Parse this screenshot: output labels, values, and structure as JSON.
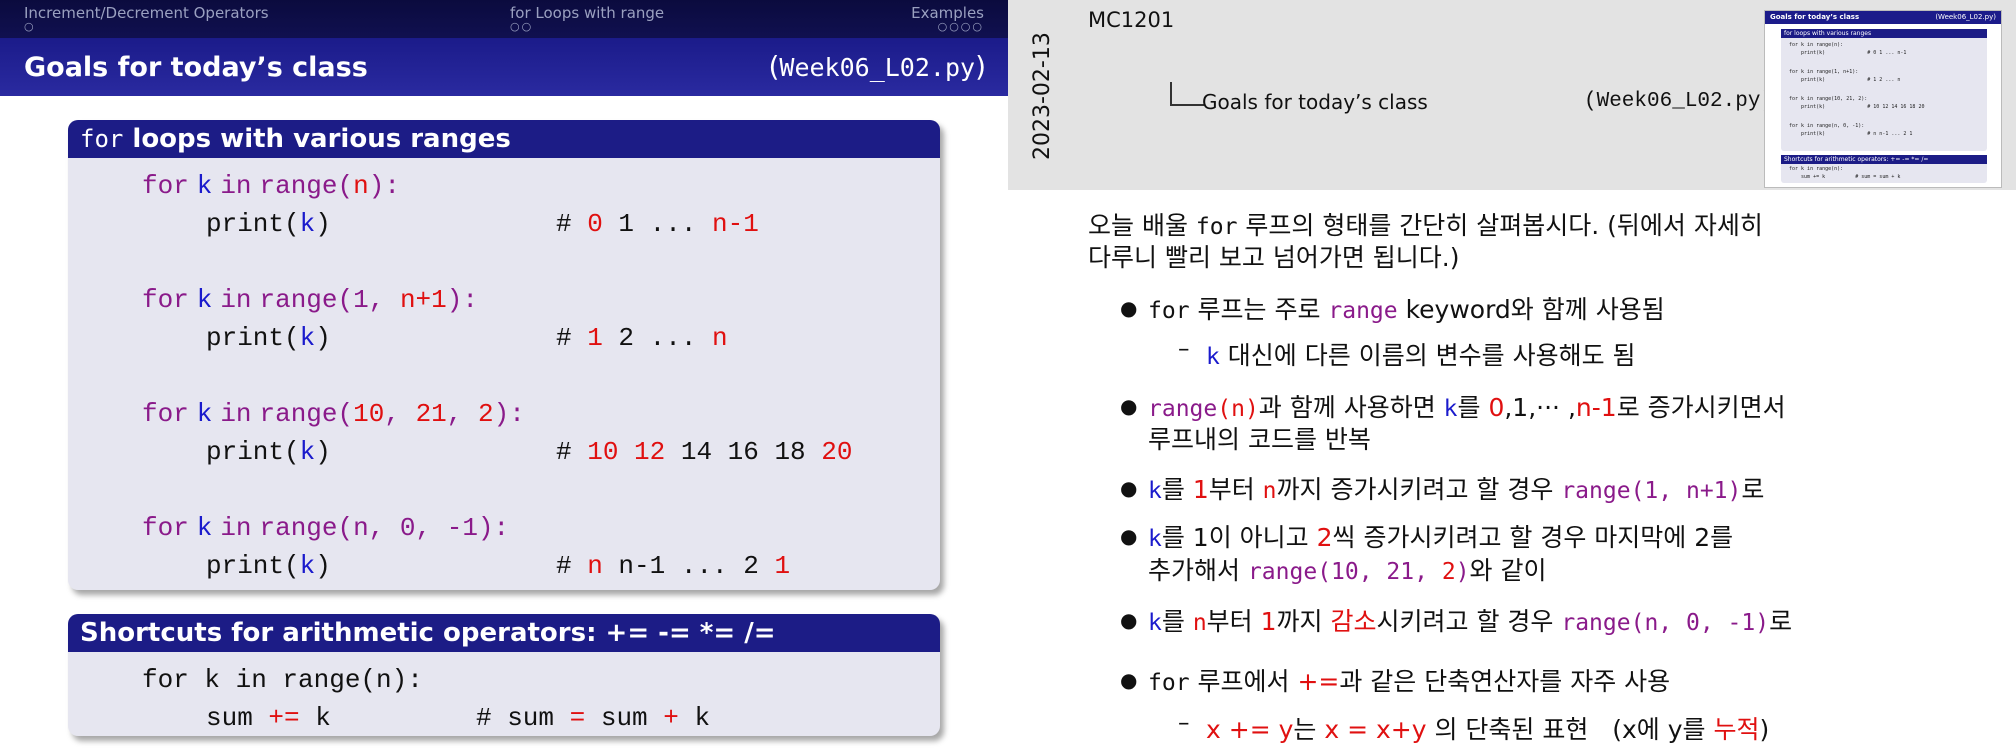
{
  "slide": {
    "nav": {
      "sections": [
        "Increment/Decrement Operators",
        "for Loops with range",
        "Examples"
      ],
      "dots": [
        "○",
        "○○",
        "○○○○"
      ]
    },
    "title": "Goals for today’s class",
    "file_paren_open": "(",
    "file": "Week06_L02.py",
    "file_paren_close": ")",
    "block1": {
      "head_mono": "for",
      "head_text": " loops with various ranges",
      "lines": [
        {
          "code": "for k in range(n):",
          "comment": ""
        },
        {
          "code": "print(k)",
          "comment": "# 0 1 ... n-1"
        },
        {
          "code": "for k in range(1, n+1):",
          "comment": ""
        },
        {
          "code": "print(k)",
          "comment": "# 1 2 ... n"
        },
        {
          "code": "for k in range(10, 21, 2):",
          "comment": ""
        },
        {
          "code": "print(k)",
          "comment": "# 10 12 14 16 18 20"
        },
        {
          "code": "for k in range(n, 0, -1):",
          "comment": ""
        },
        {
          "code": "print(k)",
          "comment": "# n n-1 ... 2 1"
        }
      ]
    },
    "block2": {
      "head_text": "Shortcuts for arithmetic operators: ",
      "head_ops": "+= -= *= /=",
      "line1": "for k in range(n):",
      "line2_code": "sum += k",
      "line2_comment": "# sum = sum + k"
    }
  },
  "notes": {
    "date": "2023-02-13",
    "course": "MC1201",
    "outline_title": "Goals for today’s class",
    "outline_file": "(Week06_L02.py)",
    "thumb": {
      "title": "Goals for today’s class",
      "file": "(Week06_L02.py)",
      "block1_head": "for loops with various ranges",
      "block2_head": "Shortcuts for arithmetic operators: += -= *= /=",
      "lines": [
        "for k in range(n):",
        "    print(k)              # 0 1 ... n-1",
        "for k in range(1, n+1):",
        "    print(k)              # 1 2 ... n",
        "for k in range(10, 21, 2):",
        "    print(k)              # 10 12 14 16 18 20",
        "for k in range(n, 0, -1):",
        "    print(k)              # n n-1 ... 2 1"
      ],
      "block2_lines": [
        "for k in range(n):",
        "    sum += k          # sum = sum + k"
      ]
    },
    "intro_line1_a": "오늘 배울 ",
    "intro_line1_mono": "for",
    "intro_line1_b": " 루프의 형태를 간단히 살펴봅시다. (뒤에서 자세히",
    "intro_line2": "다루니 빨리 보고 넘어가면 됩니다.)",
    "b1": {
      "mono": "for",
      "text_a": " 루프는 주로 ",
      "kw": "range",
      "text_b": " keyword와 함께 사용됨"
    },
    "b1_sub": {
      "k": "k",
      "text": " 대신에 다른 이름의 변수를 사용해도 됨"
    },
    "b2": {
      "kw": "range",
      "arg": "(n)",
      "text_a": "과 함께 사용하면 ",
      "k": "k",
      "text_b": "를 ",
      "zero": "0",
      "mid": ",1,··· ,",
      "nm1": "n-1",
      "text_c": "로 증가시키면서"
    },
    "b2_line2": "루프내의 코드를 반복",
    "b3": {
      "k": "k",
      "text_a": "를 ",
      "one": "1",
      "text_b": "부터 ",
      "n": "n",
      "text_c": "까지 증가시키려고 할 경우 ",
      "kw": "range",
      "args": "(1, n+1)",
      "text_d": "로"
    },
    "b4": {
      "k": "k",
      "text_a": "를 1이 아니고 ",
      "two": "2",
      "text_b": "씩 증가시키려고 할 경우 마지막에 2를"
    },
    "b4_line2": {
      "text_a": "추가해서 ",
      "code": "range(10, 21, ",
      "two": "2",
      "close": ")",
      "text_b": "와 같이"
    },
    "b5": {
      "k": "k",
      "text_a": "를 ",
      "n": "n",
      "text_b": "부터 ",
      "one": "1",
      "text_c": "까지 ",
      "dec": "감소",
      "text_d": "시키려고 할 경우 ",
      "kw": "range",
      "args": "(n, 0, -1)",
      "text_e": "로"
    },
    "b6": {
      "mono": "for",
      "text_a": " 루프에서 ",
      "op": "+=",
      "text_b": "과 같은 단축연산자를 자주 사용"
    },
    "b6_sub": {
      "code": "x += y",
      "text_a": "는 ",
      "expr": "x = x+y",
      "text_b": " 의 단축된 표현   (x에 y를 ",
      "acc": "누적",
      "text_c": ")"
    }
  },
  "colors": {
    "keyword": "#8a1a8a",
    "variable": "#1a1acc",
    "highlight": "#e01010",
    "title_bar": "#1b1b8a"
  }
}
